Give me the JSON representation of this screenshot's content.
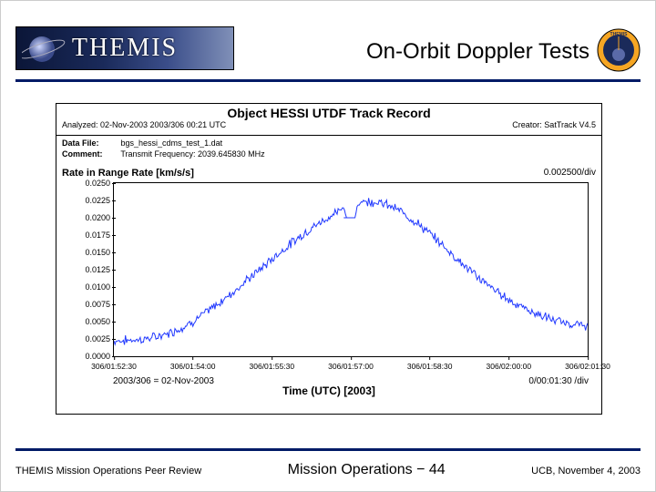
{
  "header": {
    "logo_text": "THEMIS",
    "title": "On-Orbit Doppler Tests",
    "rule_color": "#001a66",
    "badge": {
      "bg": "#f6a623",
      "fg": "#1a2a5a",
      "text": "THEMIS"
    }
  },
  "plot": {
    "type": "line",
    "title": "Object HESSI UTDF Track Record",
    "analyzed": "Analyzed: 02-Nov-2003  2003/306 00:21 UTC",
    "creator": "Creator: SatTrack V4.5",
    "data_file_label": "Data File:",
    "data_file": "bgs_hessi_cdms_test_1.dat",
    "comment_label": "Comment:",
    "comment": "Transmit Frequency: 2039.645830 MHz",
    "ylabel": "Rate in Range Rate [km/s/s]",
    "ydiv_label": "0.002500/div",
    "ylim": [
      0.0,
      0.025
    ],
    "ytick_step": 0.0025,
    "yticks": [
      "0.0000",
      "0.0025",
      "0.0050",
      "0.0075",
      "0.0100",
      "0.0125",
      "0.0150",
      "0.0175",
      "0.0200",
      "0.0225",
      "0.0250"
    ],
    "xlim_seconds": [
      0,
      540
    ],
    "xtick_step_seconds": 90,
    "xticks": [
      "306/01:52:30",
      "306/01:54:00",
      "306/01:55:30",
      "306/01:57:00",
      "306/01:58:30",
      "306/02:00:00",
      "306/02:01:30"
    ],
    "xlabel_bottom_left": "2003/306 = 02-Nov-2003",
    "xlabel_center": "Time (UTC) [2003]",
    "xlabel_bottom_right": "0/00:01:30 /div",
    "line_color": "#2038ff",
    "line_width": 1.0,
    "grid_color": "#000000",
    "background_color": "#ffffff",
    "noise_amplitude": 0.0008,
    "mean_curve": [
      [
        0,
        0.0022
      ],
      [
        15,
        0.0023
      ],
      [
        30,
        0.0024
      ],
      [
        45,
        0.0027
      ],
      [
        60,
        0.0032
      ],
      [
        75,
        0.004
      ],
      [
        90,
        0.005
      ],
      [
        105,
        0.0063
      ],
      [
        120,
        0.0077
      ],
      [
        135,
        0.0092
      ],
      [
        150,
        0.0108
      ],
      [
        165,
        0.0124
      ],
      [
        180,
        0.014
      ],
      [
        195,
        0.0156
      ],
      [
        210,
        0.0171
      ],
      [
        225,
        0.0185
      ],
      [
        240,
        0.0197
      ],
      [
        252,
        0.0206
      ],
      [
        258,
        0.021
      ],
      [
        262,
        0.0215
      ],
      [
        265,
        0.02
      ],
      [
        275,
        0.02
      ],
      [
        278,
        0.0222
      ],
      [
        285,
        0.0224
      ],
      [
        300,
        0.0223
      ],
      [
        315,
        0.0217
      ],
      [
        330,
        0.0207
      ],
      [
        345,
        0.0193
      ],
      [
        360,
        0.0177
      ],
      [
        375,
        0.016
      ],
      [
        390,
        0.0142
      ],
      [
        405,
        0.0125
      ],
      [
        420,
        0.0109
      ],
      [
        435,
        0.0095
      ],
      [
        450,
        0.0082
      ],
      [
        465,
        0.0071
      ],
      [
        480,
        0.0062
      ],
      [
        495,
        0.0055
      ],
      [
        510,
        0.0049
      ],
      [
        525,
        0.0046
      ],
      [
        540,
        0.0044
      ]
    ]
  },
  "footer": {
    "left": "THEMIS Mission Operations Peer Review",
    "center": "Mission Operations − 44",
    "right": "UCB, November 4, 2003"
  }
}
